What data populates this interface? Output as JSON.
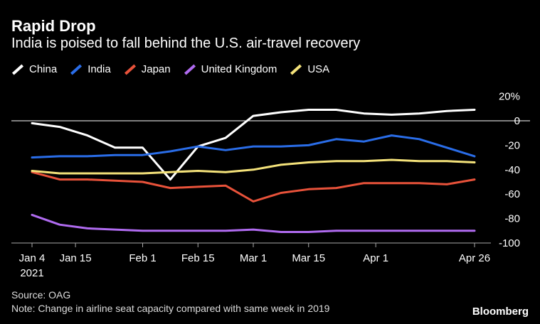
{
  "header": {
    "title": "Rapid Drop",
    "subtitle": "India is poised to fall behind the U.S. air-travel recovery"
  },
  "footer": {
    "source": "Source: OAG",
    "note": "Note: Change in airline seat capacity compared with same week in 2019",
    "brand": "Bloomberg"
  },
  "chart_data": {
    "type": "line",
    "title": "Rapid Drop",
    "subtitle": "India is poised to fall behind the U.S. air-travel recovery",
    "xlabel": "",
    "ylabel": "",
    "x": [
      "2021-01-04",
      "2021-01-11",
      "2021-01-18",
      "2021-01-25",
      "2021-02-01",
      "2021-02-08",
      "2021-02-15",
      "2021-02-22",
      "2021-03-01",
      "2021-03-08",
      "2021-03-15",
      "2021-03-22",
      "2021-03-29",
      "2021-04-05",
      "2021-04-12",
      "2021-04-19",
      "2021-04-26"
    ],
    "x_ticks": [
      {
        "date": "2021-01-04",
        "label": "Jan 4",
        "sublabel": "2021"
      },
      {
        "date": "2021-01-15",
        "label": "Jan 15",
        "sublabel": ""
      },
      {
        "date": "2021-02-01",
        "label": "Feb 1",
        "sublabel": ""
      },
      {
        "date": "2021-02-15",
        "label": "Feb 15",
        "sublabel": ""
      },
      {
        "date": "2021-03-01",
        "label": "Mar 1",
        "sublabel": ""
      },
      {
        "date": "2021-03-15",
        "label": "Mar 15",
        "sublabel": ""
      },
      {
        "date": "2021-04-01",
        "label": "Apr 1",
        "sublabel": ""
      },
      {
        "date": "2021-04-26",
        "label": "Apr 26",
        "sublabel": ""
      }
    ],
    "y_ticks": [
      {
        "value": 20,
        "label": "20%"
      },
      {
        "value": 0,
        "label": "0"
      },
      {
        "value": -20,
        "label": "-20"
      },
      {
        "value": -40,
        "label": "-40"
      },
      {
        "value": -60,
        "label": "-60"
      },
      {
        "value": -80,
        "label": "-80"
      },
      {
        "value": -100,
        "label": "-100"
      }
    ],
    "ylim": [
      -110,
      25
    ],
    "zero_line": true,
    "grid": false,
    "legend_position": "top",
    "series": [
      {
        "name": "China",
        "color": "#ffffff",
        "values": [
          -2,
          -5,
          -12,
          -22,
          -22,
          -48,
          -21,
          -14,
          4,
          7,
          9,
          9,
          6,
          5,
          6,
          8,
          9
        ]
      },
      {
        "name": "India",
        "color": "#2a6de8",
        "values": [
          -30,
          -29,
          -29,
          -28,
          -28,
          -25,
          -21,
          -24,
          -21,
          -21,
          -20,
          -15,
          -17,
          -12,
          -15,
          -22,
          -29
        ]
      },
      {
        "name": "Japan",
        "color": "#e8523a",
        "values": [
          -42,
          -48,
          -48,
          -49,
          -50,
          -55,
          -54,
          -53,
          -66,
          -59,
          -56,
          -55,
          -51,
          -51,
          -51,
          -52,
          -48
        ]
      },
      {
        "name": "United Kingdom",
        "color": "#b06bf0",
        "values": [
          -77,
          -85,
          -88,
          -89,
          -90,
          -90,
          -90,
          -90,
          -89,
          -91,
          -91,
          -90,
          -90,
          -90,
          -90,
          -90,
          -90
        ]
      },
      {
        "name": "USA",
        "color": "#f4e27a",
        "values": [
          -41,
          -43,
          -43,
          -43,
          -43,
          -42,
          -41,
          -42,
          -40,
          -36,
          -34,
          -33,
          -33,
          -32,
          -33,
          -33,
          -34
        ]
      }
    ]
  }
}
